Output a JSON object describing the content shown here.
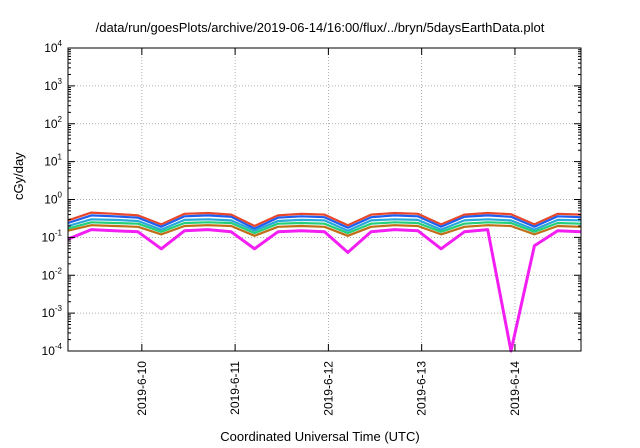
{
  "chart_data": {
    "type": "line",
    "title": "/data/run/goesPlots/archive/2019-06-14/16:00/flux/../bryn/5daysEarthData.plot",
    "xlabel": "Coordinated Universal Time (UTC)",
    "ylabel": "cGy/day",
    "yscale": "log",
    "ylim": [
      0.0001,
      10000
    ],
    "xlim": [
      "2019-06-09 05:00",
      "2019-06-14 17:00"
    ],
    "grid": true,
    "legend": "none",
    "y_ticks": [
      {
        "base": "10",
        "exp": "-4"
      },
      {
        "base": "10",
        "exp": "-3"
      },
      {
        "base": "10",
        "exp": "-2"
      },
      {
        "base": "10",
        "exp": "-1"
      },
      {
        "base": "10",
        "exp": "0"
      },
      {
        "base": "10",
        "exp": "1"
      },
      {
        "base": "10",
        "exp": "2"
      },
      {
        "base": "10",
        "exp": "3"
      },
      {
        "base": "10",
        "exp": "4"
      }
    ],
    "x_ticks": [
      "2019-6-10",
      "2019-6-11",
      "2019-6-12",
      "2019-6-13",
      "2019-6-14"
    ],
    "x": [
      "2019-06-09 05:00",
      "2019-06-09 11:00",
      "2019-06-09 17:00",
      "2019-06-09 23:00",
      "2019-06-10 05:00",
      "2019-06-10 11:00",
      "2019-06-10 17:00",
      "2019-06-10 23:00",
      "2019-06-11 05:00",
      "2019-06-11 11:00",
      "2019-06-11 17:00",
      "2019-06-11 23:00",
      "2019-06-12 05:00",
      "2019-06-12 11:00",
      "2019-06-12 17:00",
      "2019-06-12 23:00",
      "2019-06-13 05:00",
      "2019-06-13 11:00",
      "2019-06-13 17:00",
      "2019-06-13 23:00",
      "2019-06-14 05:00",
      "2019-06-14 11:00",
      "2019-06-14 17:00"
    ],
    "series": [
      {
        "color": "#e8462a",
        "values": [
          0.28,
          0.45,
          0.42,
          0.38,
          0.22,
          0.42,
          0.44,
          0.4,
          0.2,
          0.38,
          0.42,
          0.4,
          0.21,
          0.4,
          0.44,
          0.42,
          0.22,
          0.4,
          0.44,
          0.41,
          0.22,
          0.42,
          0.4
        ]
      },
      {
        "color": "#1e5ef0",
        "values": [
          0.24,
          0.38,
          0.36,
          0.33,
          0.19,
          0.36,
          0.38,
          0.35,
          0.17,
          0.33,
          0.36,
          0.34,
          0.18,
          0.34,
          0.38,
          0.36,
          0.19,
          0.35,
          0.38,
          0.35,
          0.19,
          0.36,
          0.34
        ]
      },
      {
        "color": "#2aa7d8",
        "values": [
          0.2,
          0.3,
          0.29,
          0.27,
          0.16,
          0.29,
          0.3,
          0.28,
          0.15,
          0.27,
          0.29,
          0.28,
          0.15,
          0.28,
          0.3,
          0.29,
          0.16,
          0.28,
          0.3,
          0.28,
          0.16,
          0.29,
          0.28
        ]
      },
      {
        "color": "#22d07a",
        "values": [
          0.17,
          0.25,
          0.24,
          0.23,
          0.14,
          0.24,
          0.25,
          0.24,
          0.13,
          0.23,
          0.24,
          0.23,
          0.13,
          0.23,
          0.25,
          0.24,
          0.14,
          0.23,
          0.25,
          0.24,
          0.14,
          0.24,
          0.23
        ]
      },
      {
        "color": "#c06e18",
        "values": [
          0.15,
          0.21,
          0.2,
          0.19,
          0.12,
          0.2,
          0.21,
          0.2,
          0.11,
          0.19,
          0.2,
          0.19,
          0.11,
          0.19,
          0.21,
          0.2,
          0.12,
          0.19,
          0.21,
          0.2,
          0.12,
          0.2,
          0.19
        ]
      },
      {
        "color": "#f21ef2",
        "values": [
          0.09,
          0.16,
          0.15,
          0.14,
          0.05,
          0.15,
          0.16,
          0.14,
          0.05,
          0.14,
          0.15,
          0.14,
          0.04,
          0.14,
          0.16,
          0.15,
          0.05,
          0.14,
          0.16,
          0.0001,
          0.06,
          0.15,
          0.14
        ]
      }
    ]
  }
}
